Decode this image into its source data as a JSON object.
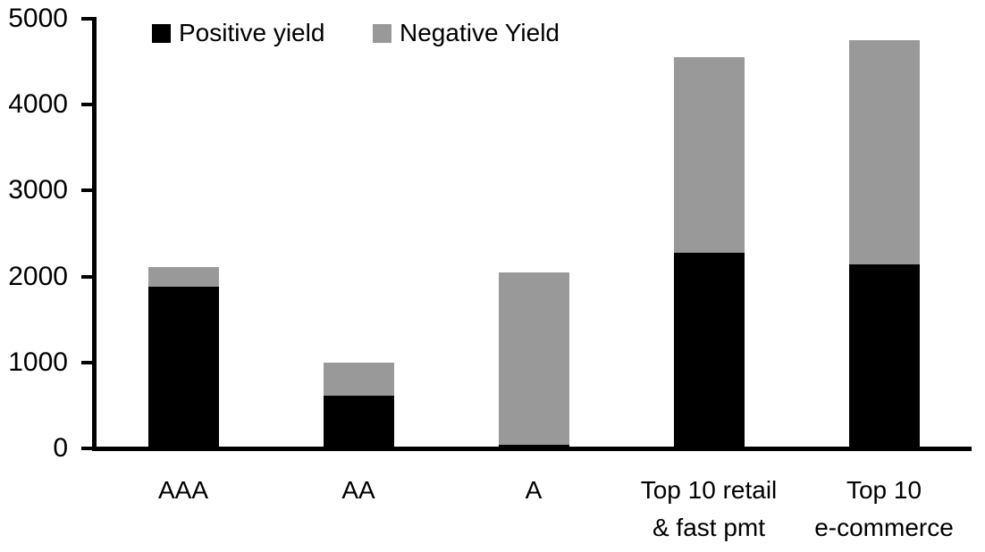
{
  "chart_data": {
    "type": "bar",
    "stacked": true,
    "title": "",
    "xlabel": "",
    "ylabel": "",
    "categories": [
      "AAA",
      "AA",
      "A",
      "Top 10 retail & fast pmt",
      "Top 10 e-commerce"
    ],
    "category_lines": [
      [
        "AAA"
      ],
      [
        "AA"
      ],
      [
        "A"
      ],
      [
        "Top 10 retail",
        "& fast pmt"
      ],
      [
        "Top 10",
        "e-commerce"
      ]
    ],
    "series": [
      {
        "name": "Positive yield",
        "color": "#000000",
        "values": [
          1880,
          610,
          45,
          2280,
          2140
        ]
      },
      {
        "name": "Negative Yield",
        "color": "#999999",
        "values": [
          235,
          390,
          2000,
          2275,
          2615
        ]
      }
    ],
    "totals": [
      2115,
      1000,
      2045,
      4555,
      4755
    ],
    "ylim": [
      0,
      5000
    ],
    "ytick_interval": 1000,
    "ytick_labels": [
      "0",
      "1000",
      "2000",
      "3000",
      "4000",
      "5000"
    ],
    "grid": false,
    "legend_position": "top",
    "axis_color": "#000000",
    "background_color": "#ffffff"
  }
}
